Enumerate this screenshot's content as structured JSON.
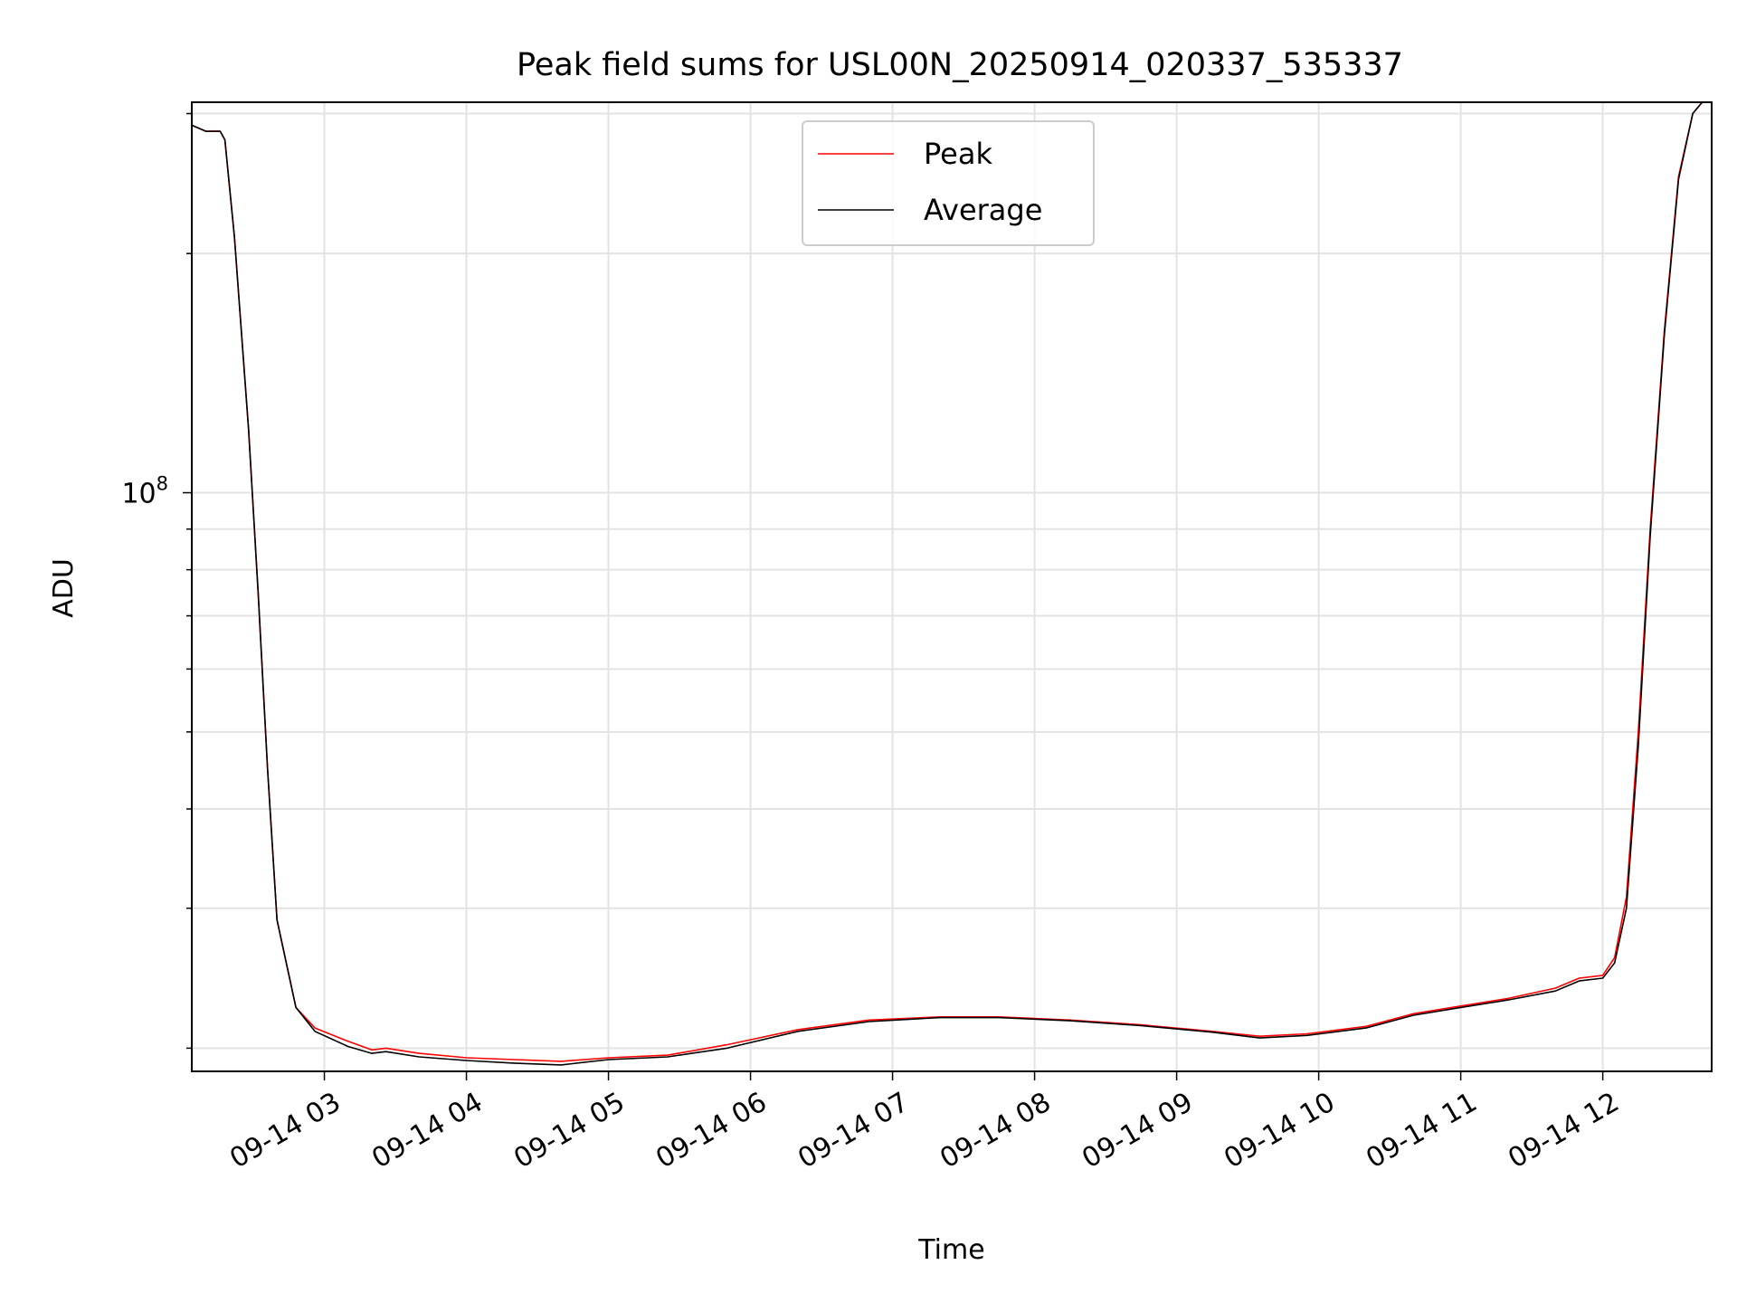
{
  "chart_data": {
    "type": "line",
    "title": "Peak field sums for USL00N_20250914_020337_535337",
    "xlabel": "Time",
    "ylabel": "ADU",
    "yscale": "log",
    "xlim": [
      "2025-09-14 02:04",
      "2025-09-14 12:46"
    ],
    "ylim": [
      18700000,
      310000000
    ],
    "x_ticks": [
      "09-14 03",
      "09-14 04",
      "09-14 05",
      "09-14 06",
      "09-14 07",
      "09-14 08",
      "09-14 09",
      "09-14 10",
      "09-14 11",
      "09-14 12"
    ],
    "y_major_tick": {
      "base": "10",
      "exponent": "8"
    },
    "grid": true,
    "legend_position": "top-center",
    "series": [
      {
        "name": "Peak",
        "color": "#ff0000",
        "x": [
          "2025-09-14 02:04",
          "2025-09-14 02:10",
          "2025-09-14 02:16",
          "2025-09-14 02:18",
          "2025-09-14 02:22",
          "2025-09-14 02:28",
          "2025-09-14 02:32",
          "2025-09-14 02:36",
          "2025-09-14 02:40",
          "2025-09-14 02:48",
          "2025-09-14 02:56",
          "2025-09-14 03:10",
          "2025-09-14 03:20",
          "2025-09-14 03:26",
          "2025-09-14 03:40",
          "2025-09-14 04:00",
          "2025-09-14 04:20",
          "2025-09-14 04:40",
          "2025-09-14 05:00",
          "2025-09-14 05:25",
          "2025-09-14 05:50",
          "2025-09-14 06:20",
          "2025-09-14 06:50",
          "2025-09-14 07:20",
          "2025-09-14 07:45",
          "2025-09-14 08:15",
          "2025-09-14 08:45",
          "2025-09-14 09:15",
          "2025-09-14 09:35",
          "2025-09-14 09:55",
          "2025-09-14 10:20",
          "2025-09-14 10:40",
          "2025-09-14 11:00",
          "2025-09-14 11:20",
          "2025-09-14 11:40",
          "2025-09-14 11:50",
          "2025-09-14 12:00",
          "2025-09-14 12:05",
          "2025-09-14 12:10",
          "2025-09-14 12:15",
          "2025-09-14 12:20",
          "2025-09-14 12:26",
          "2025-09-14 12:32",
          "2025-09-14 12:38",
          "2025-09-14 12:42",
          "2025-09-14 12:46"
        ],
        "y": [
          290000000,
          285000000,
          285000000,
          278000000,
          210000000,
          120000000,
          75000000,
          45000000,
          29000000,
          22500000,
          21200000,
          20400000,
          19900000,
          20000000,
          19700000,
          19450000,
          19350000,
          19250000,
          19450000,
          19600000,
          20200000,
          21100000,
          21700000,
          21900000,
          21900000,
          21700000,
          21400000,
          21000000,
          20700000,
          20850000,
          21300000,
          22100000,
          22600000,
          23100000,
          23800000,
          24500000,
          24700000,
          26000000,
          31000000,
          50000000,
          90000000,
          160000000,
          250000000,
          300000000,
          310000000,
          310000000
        ]
      },
      {
        "name": "Average",
        "color": "#000000",
        "x": [
          "2025-09-14 02:04",
          "2025-09-14 02:10",
          "2025-09-14 02:16",
          "2025-09-14 02:18",
          "2025-09-14 02:22",
          "2025-09-14 02:28",
          "2025-09-14 02:32",
          "2025-09-14 02:36",
          "2025-09-14 02:40",
          "2025-09-14 02:48",
          "2025-09-14 02:56",
          "2025-09-14 03:10",
          "2025-09-14 03:20",
          "2025-09-14 03:26",
          "2025-09-14 03:40",
          "2025-09-14 04:00",
          "2025-09-14 04:20",
          "2025-09-14 04:40",
          "2025-09-14 05:00",
          "2025-09-14 05:25",
          "2025-09-14 05:50",
          "2025-09-14 06:20",
          "2025-09-14 06:50",
          "2025-09-14 07:20",
          "2025-09-14 07:45",
          "2025-09-14 08:15",
          "2025-09-14 08:45",
          "2025-09-14 09:15",
          "2025-09-14 09:35",
          "2025-09-14 09:55",
          "2025-09-14 10:20",
          "2025-09-14 10:40",
          "2025-09-14 11:00",
          "2025-09-14 11:20",
          "2025-09-14 11:40",
          "2025-09-14 11:50",
          "2025-09-14 12:00",
          "2025-09-14 12:05",
          "2025-09-14 12:10",
          "2025-09-14 12:15",
          "2025-09-14 12:20",
          "2025-09-14 12:26",
          "2025-09-14 12:32",
          "2025-09-14 12:38",
          "2025-09-14 12:42",
          "2025-09-14 12:46"
        ],
        "y": [
          290000000,
          285000000,
          285000000,
          278000000,
          210000000,
          120000000,
          75000000,
          45000000,
          29000000,
          22500000,
          21000000,
          20100000,
          19700000,
          19800000,
          19500000,
          19300000,
          19150000,
          19050000,
          19350000,
          19500000,
          20000000,
          21000000,
          21600000,
          21850000,
          21850000,
          21650000,
          21350000,
          20950000,
          20600000,
          20750000,
          21200000,
          22000000,
          22500000,
          23000000,
          23600000,
          24300000,
          24500000,
          25600000,
          30000000,
          48000000,
          88000000,
          158000000,
          248000000,
          300000000,
          310000000,
          310000000
        ]
      }
    ]
  }
}
